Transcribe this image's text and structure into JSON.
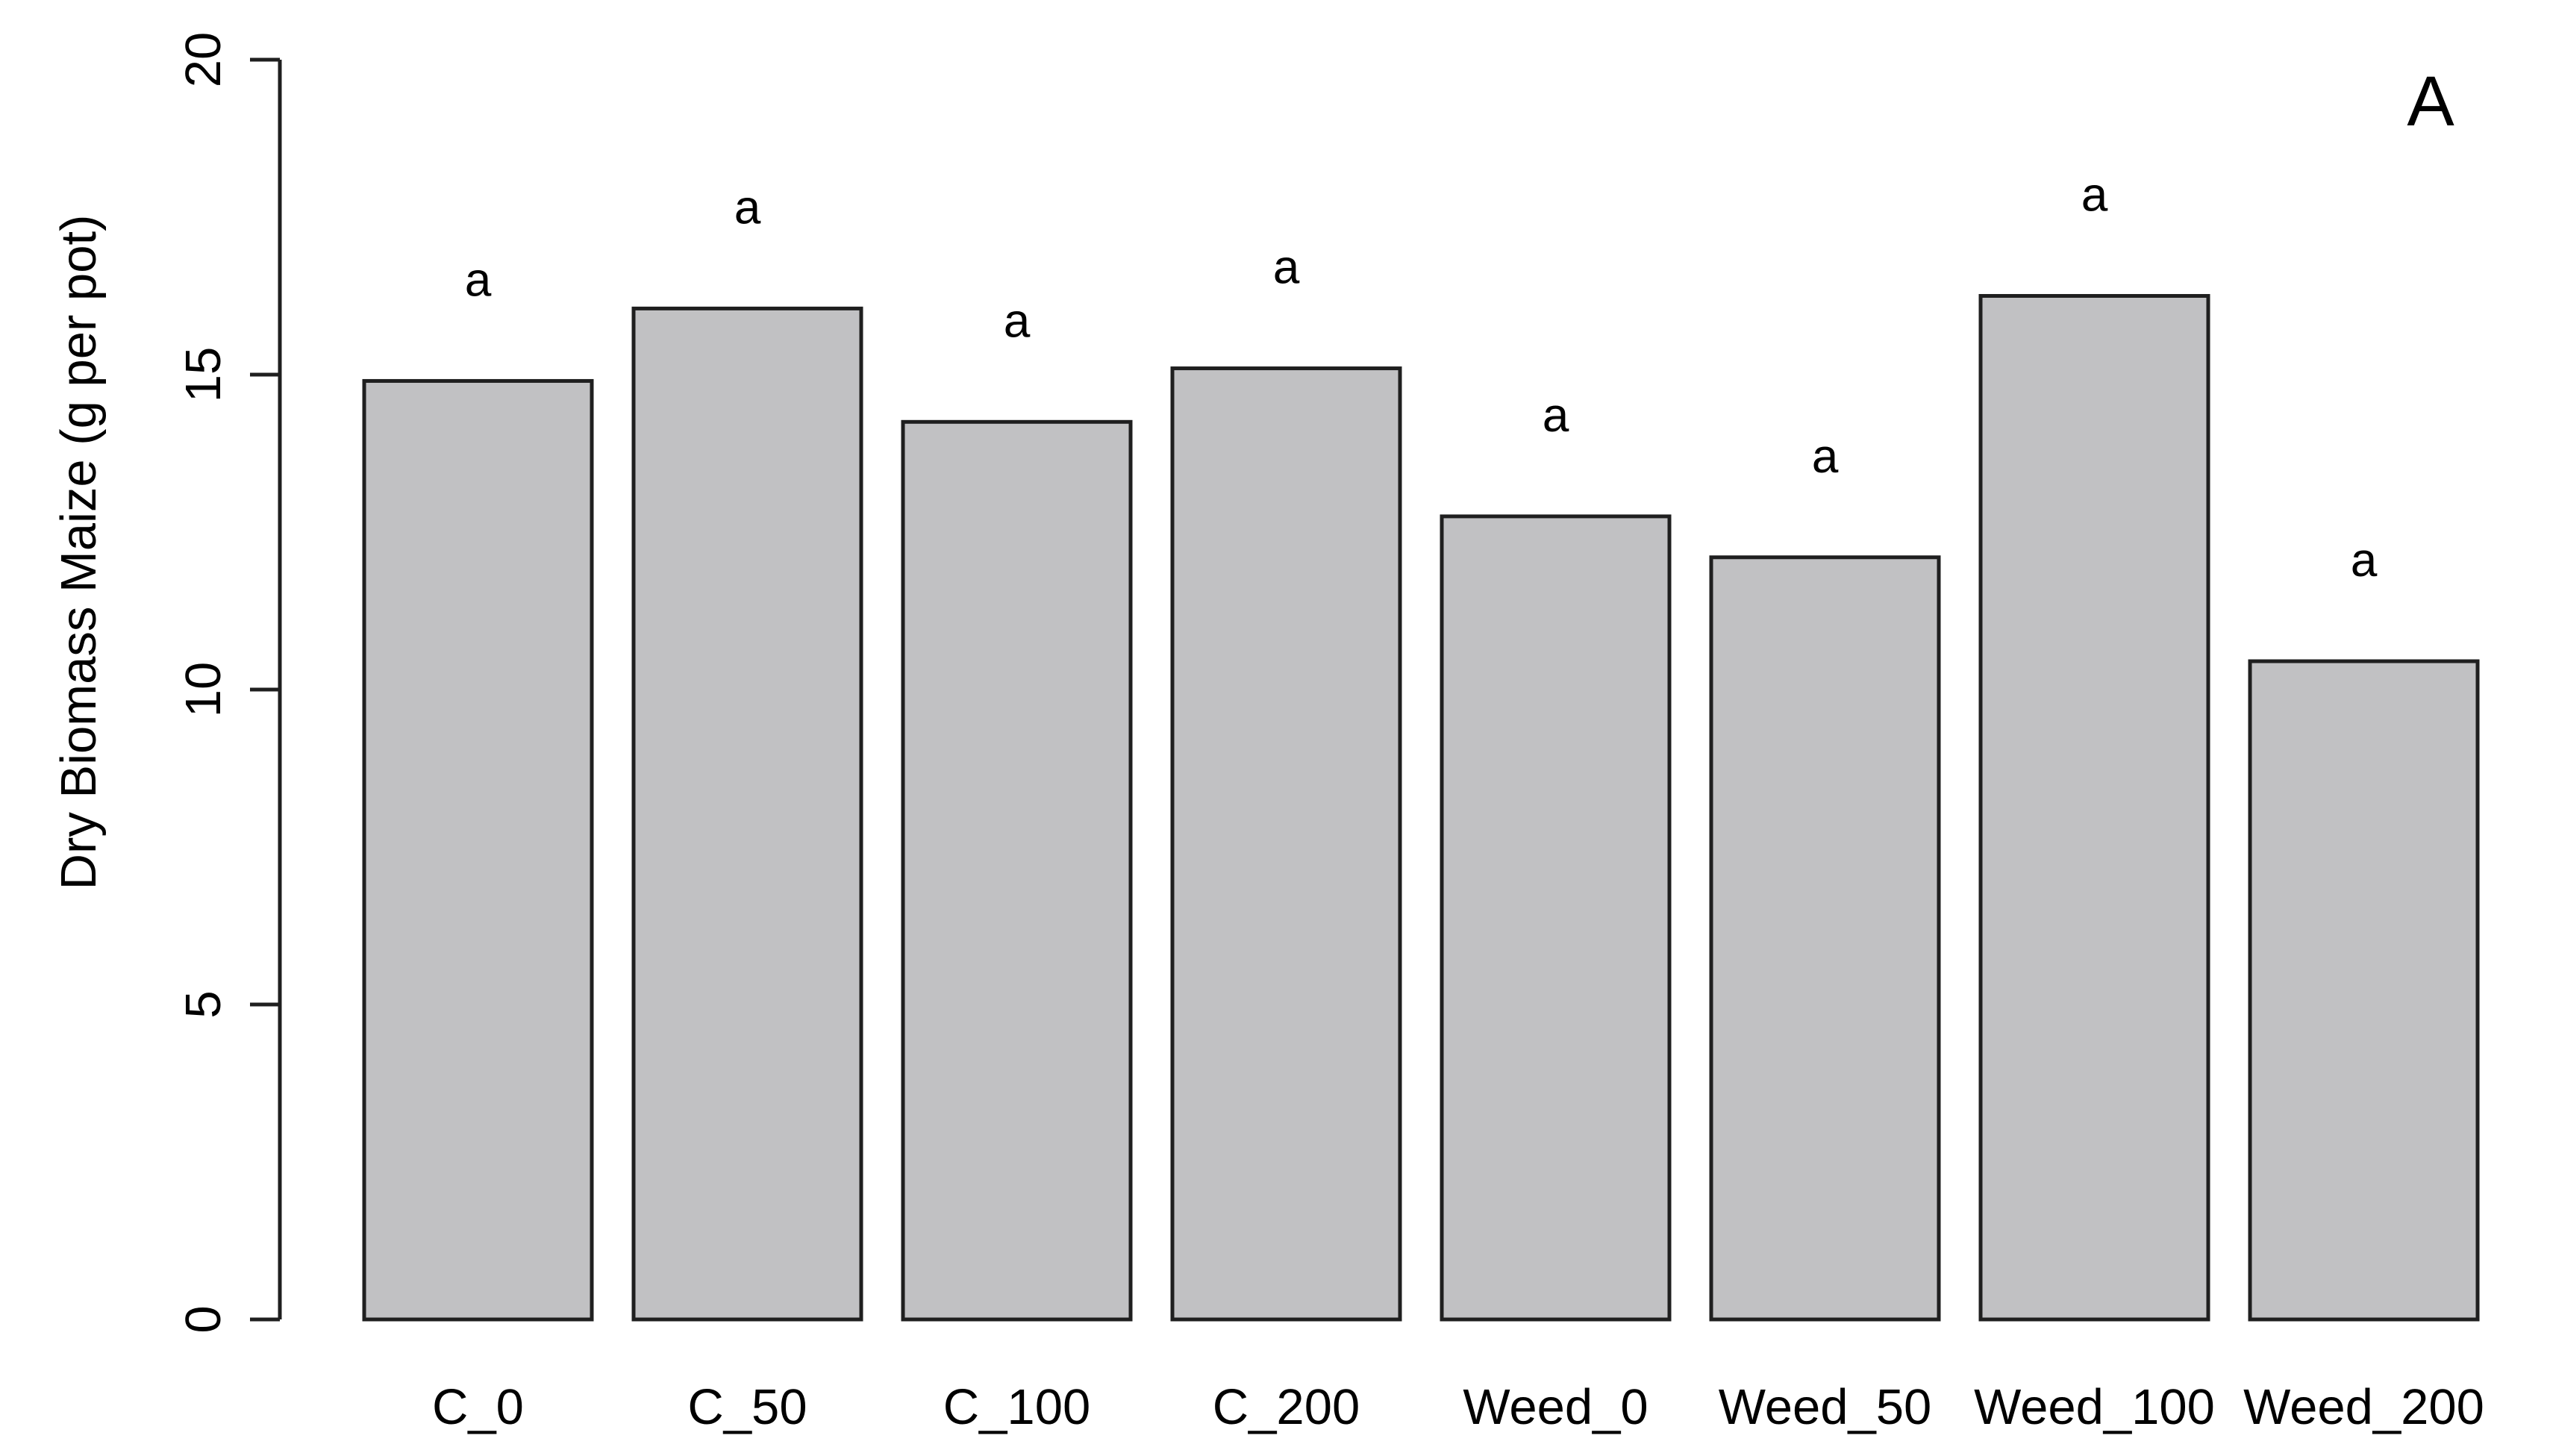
{
  "figure": {
    "panel_label": "A"
  },
  "chart_data": {
    "type": "bar",
    "title": "",
    "categories": [
      "C_0",
      "C_50",
      "C_100",
      "C_200",
      "Weed_0",
      "Weed_50",
      "Weed_100",
      "Weed_200"
    ],
    "values": [
      14.9,
      16.05,
      14.25,
      15.1,
      12.75,
      12.1,
      16.25,
      10.45
    ],
    "bar_annotations": [
      "a",
      "a",
      "a",
      "a",
      "a",
      "a",
      "a",
      "a"
    ],
    "xlabel": "",
    "ylabel": "Dry Biomass Maize (g per pot)",
    "ylim": [
      0,
      20
    ],
    "yticks": [
      0,
      5,
      10,
      15,
      20
    ],
    "grid": false,
    "legend": "none",
    "panel_label": "A",
    "style": {
      "bar_fill": "#c1c1c3",
      "bar_border": "#1f1f1f",
      "axis_color": "#1f1f1f",
      "text_color": "#000000",
      "background": "#ffffff"
    }
  }
}
